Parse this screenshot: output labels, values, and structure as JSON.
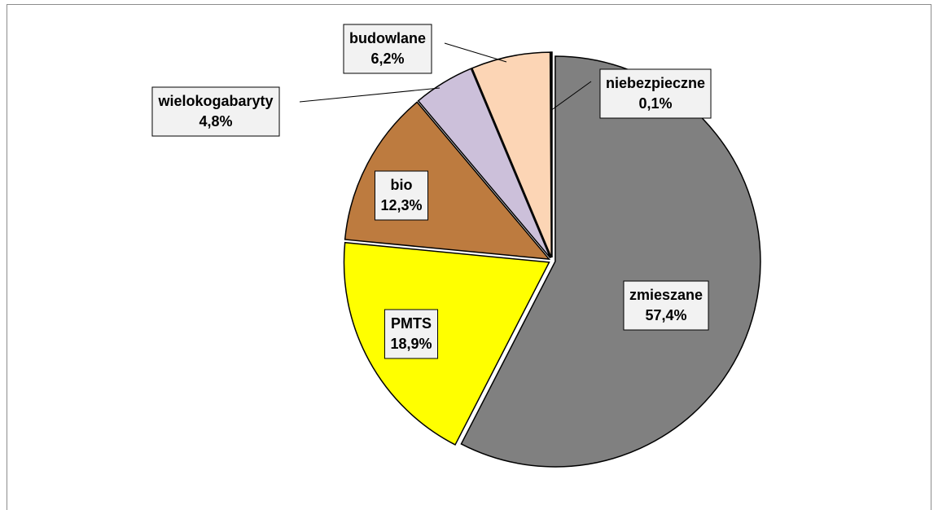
{
  "chart_data": {
    "type": "pie",
    "categories": [
      "zmieszane",
      "PMTS",
      "bio",
      "wielokogabaryty",
      "budowlane",
      "niebezpieczne"
    ],
    "values": [
      57.4,
      18.9,
      12.3,
      4.8,
      6.2,
      0.1
    ],
    "value_labels": [
      "57,4%",
      "18,9%",
      "12,3%",
      "4,8%",
      "6,2%",
      "0,1%"
    ],
    "colors": [
      "#808080",
      "#ffff00",
      "#bd7b3f",
      "#ccc0da",
      "#fcd5b5",
      "#000000"
    ]
  }
}
